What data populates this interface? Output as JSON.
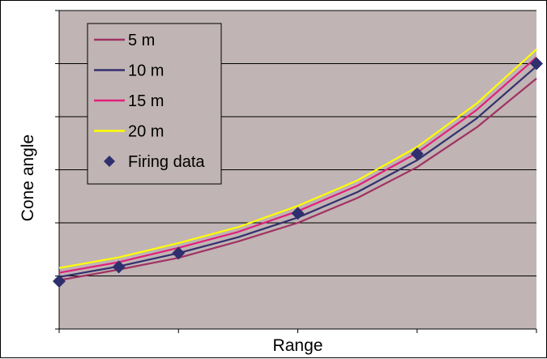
{
  "chart_data": {
    "type": "line",
    "title": "",
    "xlabel": "Range",
    "ylabel": "Cone angle",
    "x": [
      0,
      1,
      2,
      3,
      4,
      5,
      6,
      7,
      8
    ],
    "xlim": [
      0,
      8
    ],
    "ylim": [
      0,
      6
    ],
    "x_ticks": [
      0,
      2,
      4,
      6,
      8
    ],
    "y_ticks": [
      0,
      1,
      2,
      3,
      4,
      5,
      6
    ],
    "grid": "horizontal",
    "legend_position": "top-left",
    "plot_background": "#c0b4b4",
    "series": [
      {
        "name": "5 m",
        "color": "#a03262",
        "values": [
          0.92,
          1.12,
          1.34,
          1.65,
          2.0,
          2.47,
          3.05,
          3.8,
          4.72
        ]
      },
      {
        "name": "10 m",
        "color": "#34306f",
        "values": [
          0.98,
          1.18,
          1.43,
          1.73,
          2.1,
          2.58,
          3.18,
          3.97,
          4.95
        ]
      },
      {
        "name": "15 m",
        "color": "#e0207a",
        "values": [
          1.06,
          1.26,
          1.53,
          1.83,
          2.22,
          2.7,
          3.32,
          4.13,
          5.12
        ]
      },
      {
        "name": "20 m",
        "color": "#ffff00",
        "values": [
          1.15,
          1.35,
          1.62,
          1.92,
          2.32,
          2.8,
          3.43,
          4.25,
          5.27
        ]
      }
    ],
    "scatter": {
      "name": "Firing data",
      "color": "#2f2f6e",
      "marker": "diamond",
      "x": [
        0,
        1,
        2,
        4,
        6,
        8
      ],
      "y": [
        0.9,
        1.17,
        1.43,
        2.18,
        3.3,
        5.0
      ]
    }
  }
}
